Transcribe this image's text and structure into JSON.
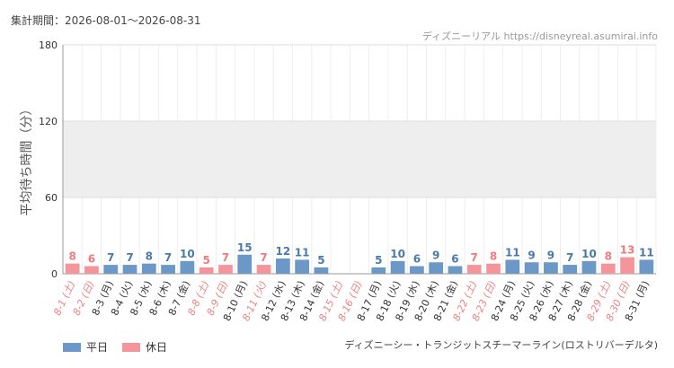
{
  "header": {
    "period": "集計期間：2026-08-01～2026-08-31",
    "site": "ディズニーリアル https://disneyreal.asumirai.info"
  },
  "subtitle": "ディズニーシー・トランジットスチーマーライン(ロストリバーデルタ)",
  "legend": {
    "weekday": "平日",
    "holiday": "休日"
  },
  "colors": {
    "weekday": "#6b98c6",
    "holiday": "#f4959c",
    "holiday_text": "#f08080",
    "value_weekday": "#4a7aa8",
    "value_holiday": "#f07a80",
    "band": "#eeeeee",
    "grid": "#dddddd"
  },
  "chart_data": {
    "type": "bar",
    "ylabel": "平均待ち時間（分）",
    "ylim": [
      0,
      180
    ],
    "yticks": [
      0,
      60,
      120,
      180
    ],
    "shaded_band": [
      60,
      120
    ],
    "categories": [
      "8-1 (土)",
      "8-2 (日)",
      "8-3 (月)",
      "8-4 (火)",
      "8-5 (水)",
      "8-6 (木)",
      "8-7 (金)",
      "8-8 (土)",
      "8-9 (日)",
      "8-10 (月)",
      "8-11 (火)",
      "8-12 (水)",
      "8-13 (木)",
      "8-14 (金)",
      "8-15 (土)",
      "8-16 (日)",
      "8-17 (月)",
      "8-18 (火)",
      "8-19 (水)",
      "8-20 (木)",
      "8-21 (金)",
      "8-22 (土)",
      "8-23 (日)",
      "8-24 (月)",
      "8-25 (火)",
      "8-26 (水)",
      "8-27 (木)",
      "8-28 (金)",
      "8-29 (土)",
      "8-30 (日)",
      "8-31 (月)"
    ],
    "values": [
      8,
      6,
      7,
      7,
      8,
      7,
      10,
      5,
      7,
      15,
      7,
      12,
      11,
      5,
      null,
      null,
      5,
      10,
      6,
      9,
      6,
      7,
      8,
      11,
      9,
      9,
      7,
      10,
      8,
      13,
      11
    ],
    "holiday": [
      true,
      true,
      false,
      false,
      false,
      false,
      false,
      true,
      true,
      false,
      true,
      false,
      false,
      false,
      true,
      true,
      false,
      false,
      false,
      false,
      false,
      true,
      true,
      false,
      false,
      false,
      false,
      false,
      true,
      true,
      false
    ],
    "series": [
      {
        "name": "平日"
      },
      {
        "name": "休日"
      }
    ]
  }
}
